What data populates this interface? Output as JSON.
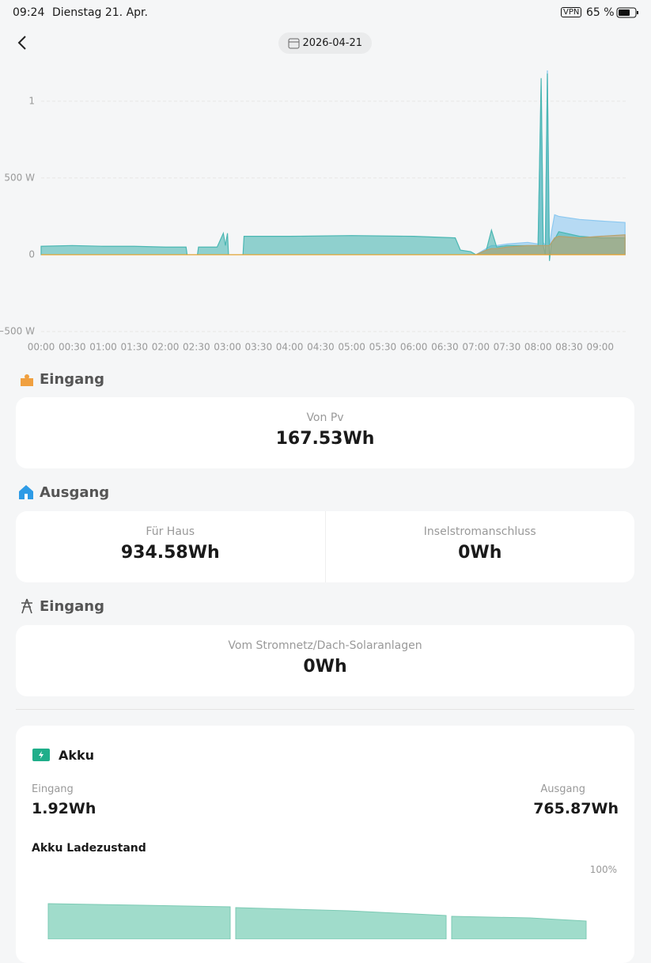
{
  "status_bar": {
    "time": "09:24",
    "date": "Dienstag 21. Apr.",
    "vpn": "VPN",
    "battery": "65 %"
  },
  "date_selector": "2026-04-21",
  "chart_data": {
    "type": "area",
    "x": [
      0,
      30,
      60,
      90,
      120,
      140,
      141,
      151,
      152,
      170,
      176,
      178,
      180,
      181,
      195,
      196,
      240,
      300,
      360,
      400,
      405,
      415,
      420,
      430,
      435,
      440,
      450,
      470,
      480,
      483,
      485,
      487,
      489,
      491,
      493,
      496,
      500,
      520,
      540,
      564
    ],
    "series": [
      {
        "color": "#8cc8f0",
        "values": [
          null,
          null,
          null,
          null,
          null,
          null,
          null,
          null,
          null,
          null,
          null,
          null,
          null,
          null,
          null,
          null,
          null,
          null,
          null,
          null,
          null,
          null,
          0,
          40,
          60,
          60,
          70,
          80,
          70,
          1100,
          80,
          60,
          1200,
          50,
          150,
          260,
          250,
          230,
          220,
          210
        ]
      },
      {
        "color": "#4bb7b3",
        "values": [
          55,
          60,
          55,
          55,
          50,
          50,
          0,
          0,
          50,
          50,
          140,
          60,
          140,
          0,
          0,
          120,
          120,
          125,
          120,
          110,
          30,
          20,
          0,
          30,
          160,
          50,
          60,
          60,
          60,
          1150,
          60,
          0,
          1180,
          -40,
          80,
          100,
          150,
          120,
          110,
          110
        ]
      },
      {
        "color": "#b9a16a",
        "values": [
          null,
          null,
          null,
          null,
          null,
          null,
          null,
          null,
          null,
          null,
          null,
          null,
          null,
          null,
          null,
          null,
          null,
          null,
          null,
          null,
          null,
          null,
          0,
          30,
          40,
          40,
          50,
          60,
          60,
          60,
          60,
          60,
          60,
          60,
          80,
          110,
          120,
          110,
          120,
          130
        ]
      },
      {
        "color": "#f0a020",
        "values": [
          0,
          0,
          0,
          0,
          0,
          0,
          0,
          0,
          0,
          0,
          0,
          0,
          0,
          0,
          0,
          0,
          0,
          0,
          0,
          0,
          0,
          0,
          0,
          0,
          0,
          0,
          0,
          0,
          0,
          0,
          0,
          0,
          0,
          0,
          0,
          0,
          0,
          0,
          0,
          0
        ]
      }
    ],
    "xlim": [
      0,
      570
    ],
    "xticks": [
      {
        "value": 0,
        "label": "00:00"
      },
      {
        "value": 30,
        "label": "00:30"
      },
      {
        "value": 60,
        "label": "01:00"
      },
      {
        "value": 90,
        "label": "01:30"
      },
      {
        "value": 120,
        "label": "02:00"
      },
      {
        "value": 150,
        "label": "02:30"
      },
      {
        "value": 180,
        "label": "03:00"
      },
      {
        "value": 210,
        "label": "03:30"
      },
      {
        "value": 240,
        "label": "04:00"
      },
      {
        "value": 270,
        "label": "04:30"
      },
      {
        "value": 300,
        "label": "05:00"
      },
      {
        "value": 330,
        "label": "05:30"
      },
      {
        "value": 360,
        "label": "06:00"
      },
      {
        "value": 390,
        "label": "06:30"
      },
      {
        "value": 420,
        "label": "07:00"
      },
      {
        "value": 450,
        "label": "07:30"
      },
      {
        "value": 480,
        "label": "08:00"
      },
      {
        "value": 510,
        "label": "08:30"
      },
      {
        "value": 540,
        "label": "09:00"
      }
    ],
    "ylim": [
      -500,
      1200
    ],
    "yticks": [
      {
        "value": 1000,
        "label": "1"
      },
      {
        "value": 500,
        "label": "500 W"
      },
      0,
      {
        "value": -500,
        "label": "−500 W"
      }
    ],
    "grid": true
  },
  "sections": [
    {
      "title": "Eingang",
      "items": [
        {
          "label": "Von Pv",
          "value": "167.53Wh"
        }
      ]
    },
    {
      "title": "Ausgang",
      "items": [
        {
          "label": "Für Haus",
          "value": "934.58Wh"
        },
        {
          "label": "Inselstromanschluss",
          "value": "0Wh"
        }
      ]
    },
    {
      "title": "Eingang",
      "items": [
        {
          "label": "Vom Stromnetz/Dach-Solaranlagen",
          "value": "0Wh"
        }
      ]
    }
  ],
  "akku": {
    "title": "Akku",
    "input_label": "Eingang",
    "input_value": "1.92Wh",
    "output_label": "Ausgang",
    "output_value": "765.87Wh",
    "soc_title": "Akku Ladezustand",
    "soc_max_label": "100%"
  }
}
